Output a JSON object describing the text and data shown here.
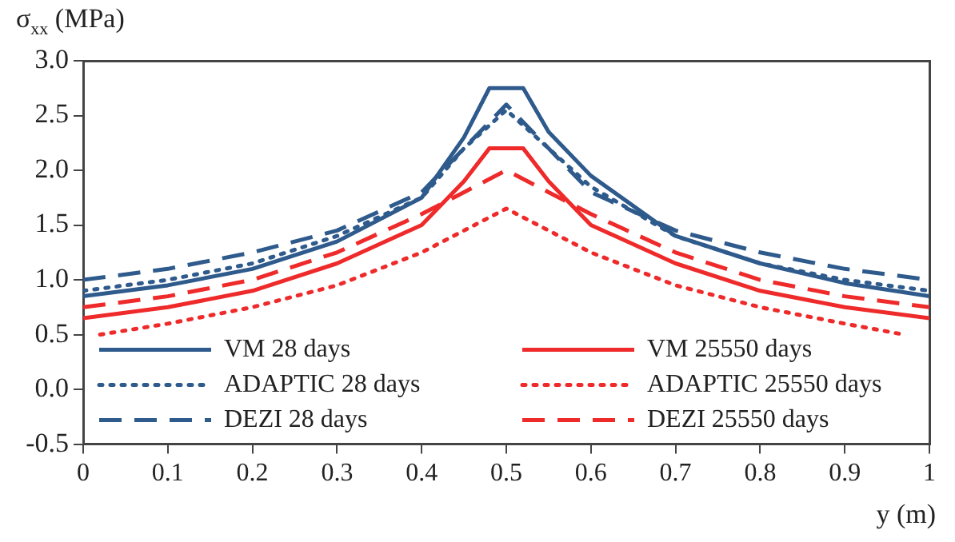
{
  "chart_data": {
    "type": "line",
    "xlabel": "y (m)",
    "ylabel": "σ$_{xx}$ (MPa)",
    "xlim": [
      0,
      1
    ],
    "xticks": [
      0,
      {
        "value": 0.1,
        "label": "0.1"
      },
      {
        "value": 0.2,
        "label": "0.2"
      },
      {
        "value": 0.3,
        "label": "0.3"
      },
      {
        "value": 0.4,
        "label": "0.4"
      },
      {
        "value": 0.5,
        "label": "0.5"
      },
      {
        "value": 0.6,
        "label": "0.6"
      },
      {
        "value": 0.7,
        "label": "0.7"
      },
      {
        "value": 0.8,
        "label": "0.8"
      },
      {
        "value": 0.9,
        "label": "0.9"
      },
      1
    ],
    "ylim": [
      -0.5,
      3
    ],
    "yticks": [
      {
        "value": -0.5,
        "label": "-0.5"
      },
      {
        "value": 0,
        "label": "0.0"
      },
      {
        "value": 0.5,
        "label": "0.5"
      },
      {
        "value": 1,
        "label": "1.0"
      },
      {
        "value": 1.5,
        "label": "1.5"
      },
      {
        "value": 2,
        "label": "2.0"
      },
      {
        "value": 2.5,
        "label": "2.5"
      },
      {
        "value": 3,
        "label": "3.0"
      }
    ],
    "grid": false,
    "legend": "bottom",
    "marker": "none",
    "series": [
      {
        "name": "VM 28 days",
        "color": "#2e5a8c",
        "line_style": "solid",
        "x": [
          0,
          0.1,
          0.2,
          0.3,
          0.4,
          0.45,
          0.48,
          0.52,
          0.55,
          0.6,
          0.7,
          0.8,
          0.9,
          1
        ],
        "values": [
          0.85,
          0.95,
          1.1,
          1.35,
          1.75,
          2.3,
          2.75,
          2.75,
          2.35,
          1.95,
          1.4,
          1.15,
          0.97,
          0.85
        ]
      },
      {
        "name": "ADAPTIC 28 days",
        "color": "#2e5a8c",
        "line_style": "dotted",
        "x": [
          0,
          0.1,
          0.2,
          0.3,
          0.4,
          0.45,
          0.5,
          0.55,
          0.6,
          0.7,
          0.8,
          0.9,
          1
        ],
        "values": [
          0.9,
          1.0,
          1.15,
          1.4,
          1.75,
          2.2,
          2.55,
          2.2,
          1.85,
          1.4,
          1.15,
          1.0,
          0.9
        ]
      },
      {
        "name": "DEZI 28 days",
        "color": "#2e5a8c",
        "line_style": "dashed",
        "x": [
          0,
          0.1,
          0.2,
          0.3,
          0.4,
          0.45,
          0.5,
          0.55,
          0.6,
          0.7,
          0.8,
          0.9,
          1
        ],
        "values": [
          1.0,
          1.1,
          1.25,
          1.45,
          1.8,
          2.2,
          2.6,
          2.2,
          1.8,
          1.45,
          1.25,
          1.1,
          1.0
        ]
      },
      {
        "name": "VM 25550 days",
        "color": "#ee2a2a",
        "line_style": "solid",
        "x": [
          0,
          0.1,
          0.2,
          0.3,
          0.4,
          0.45,
          0.48,
          0.52,
          0.55,
          0.6,
          0.7,
          0.8,
          0.9,
          1
        ],
        "values": [
          0.65,
          0.75,
          0.9,
          1.15,
          1.5,
          1.9,
          2.2,
          2.2,
          1.9,
          1.5,
          1.15,
          0.9,
          0.75,
          0.65
        ]
      },
      {
        "name": "ADAPTIC 25550 days",
        "color": "#ee2a2a",
        "line_style": "dotted",
        "x": [
          0.02,
          0.1,
          0.2,
          0.3,
          0.4,
          0.5,
          0.6,
          0.7,
          0.8,
          0.9,
          0.97
        ],
        "values": [
          0.5,
          0.6,
          0.75,
          0.95,
          1.25,
          1.65,
          1.25,
          0.95,
          0.75,
          0.6,
          0.5
        ]
      },
      {
        "name": "DEZI 25550 days",
        "color": "#ee2a2a",
        "line_style": "dashed",
        "x": [
          0,
          0.1,
          0.2,
          0.3,
          0.4,
          0.45,
          0.5,
          0.55,
          0.6,
          0.7,
          0.8,
          0.9,
          1
        ],
        "values": [
          0.75,
          0.85,
          1.0,
          1.25,
          1.6,
          1.8,
          2.0,
          1.8,
          1.6,
          1.25,
          1.0,
          0.85,
          0.75
        ]
      }
    ]
  }
}
